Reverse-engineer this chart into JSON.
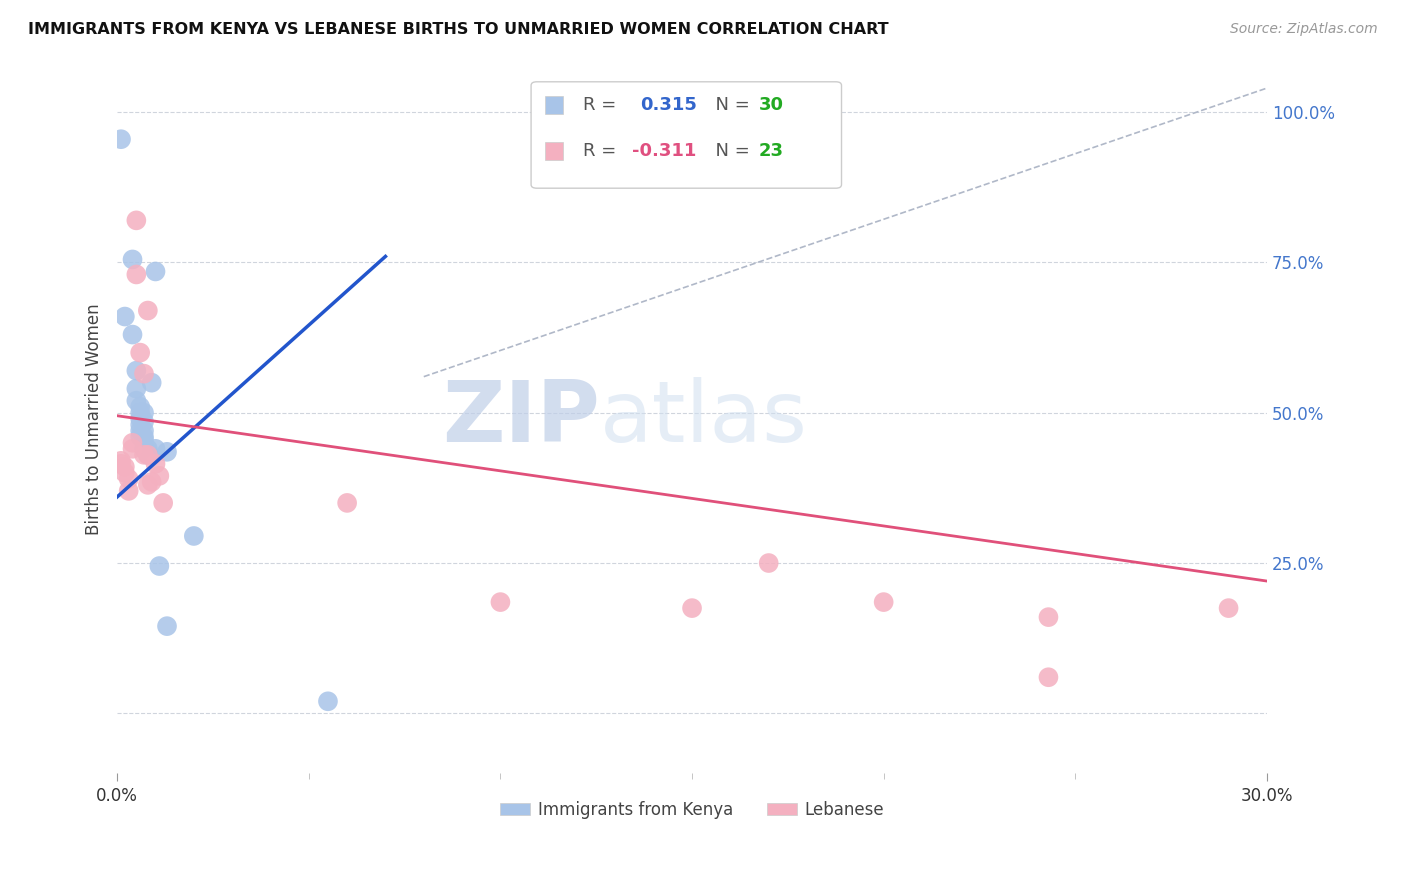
{
  "title": "IMMIGRANTS FROM KENYA VS LEBANESE BIRTHS TO UNMARRIED WOMEN CORRELATION CHART",
  "source": "Source: ZipAtlas.com",
  "ylabel": "Births to Unmarried Women",
  "xlim": [
    0.0,
    0.3
  ],
  "ylim": [
    -0.1,
    1.08
  ],
  "xtick_positions": [
    0.0,
    0.3
  ],
  "xtick_labels": [
    "0.0%",
    "30.0%"
  ],
  "xtick_minor_positions": [
    0.05,
    0.1,
    0.15,
    0.2,
    0.25
  ],
  "yticks_right": [
    0.0,
    0.25,
    0.5,
    0.75,
    1.0
  ],
  "ytick_labels_right": [
    "",
    "25.0%",
    "50.0%",
    "75.0%",
    "100.0%"
  ],
  "watermark_zip": "ZIP",
  "watermark_atlas": "atlas",
  "blue_color": "#a8c4e8",
  "pink_color": "#f4b0c0",
  "blue_line_color": "#2255cc",
  "pink_line_color": "#e0507a",
  "blue_scatter": [
    [
      0.001,
      0.955
    ],
    [
      0.002,
      0.66
    ],
    [
      0.004,
      0.755
    ],
    [
      0.004,
      0.63
    ],
    [
      0.005,
      0.57
    ],
    [
      0.005,
      0.54
    ],
    [
      0.005,
      0.52
    ],
    [
      0.006,
      0.51
    ],
    [
      0.006,
      0.5
    ],
    [
      0.006,
      0.49
    ],
    [
      0.006,
      0.48
    ],
    [
      0.006,
      0.47
    ],
    [
      0.006,
      0.46
    ],
    [
      0.007,
      0.5
    ],
    [
      0.007,
      0.485
    ],
    [
      0.007,
      0.47
    ],
    [
      0.007,
      0.46
    ],
    [
      0.007,
      0.455
    ],
    [
      0.007,
      0.44
    ],
    [
      0.008,
      0.44
    ],
    [
      0.008,
      0.435
    ],
    [
      0.008,
      0.43
    ],
    [
      0.009,
      0.55
    ],
    [
      0.01,
      0.735
    ],
    [
      0.01,
      0.44
    ],
    [
      0.011,
      0.245
    ],
    [
      0.013,
      0.145
    ],
    [
      0.013,
      0.435
    ],
    [
      0.02,
      0.295
    ],
    [
      0.055,
      0.02
    ]
  ],
  "pink_scatter": [
    [
      0.001,
      0.42
    ],
    [
      0.001,
      0.415
    ],
    [
      0.002,
      0.41
    ],
    [
      0.002,
      0.4
    ],
    [
      0.003,
      0.39
    ],
    [
      0.003,
      0.37
    ],
    [
      0.004,
      0.45
    ],
    [
      0.004,
      0.44
    ],
    [
      0.005,
      0.82
    ],
    [
      0.005,
      0.73
    ],
    [
      0.006,
      0.6
    ],
    [
      0.007,
      0.565
    ],
    [
      0.007,
      0.43
    ],
    [
      0.008,
      0.67
    ],
    [
      0.008,
      0.43
    ],
    [
      0.008,
      0.38
    ],
    [
      0.009,
      0.385
    ],
    [
      0.01,
      0.415
    ],
    [
      0.011,
      0.395
    ],
    [
      0.012,
      0.35
    ],
    [
      0.06,
      0.35
    ],
    [
      0.1,
      0.185
    ],
    [
      0.15,
      0.175
    ],
    [
      0.17,
      0.25
    ],
    [
      0.2,
      0.185
    ],
    [
      0.243,
      0.16
    ],
    [
      0.243,
      0.06
    ],
    [
      0.29,
      0.175
    ]
  ],
  "blue_line_x": [
    0.0,
    0.07
  ],
  "blue_line_y": [
    0.36,
    0.76
  ],
  "pink_line_x": [
    0.0,
    0.3
  ],
  "pink_line_y": [
    0.495,
    0.22
  ],
  "diag_line_x": [
    0.08,
    0.3
  ],
  "diag_line_y": [
    0.56,
    1.04
  ]
}
